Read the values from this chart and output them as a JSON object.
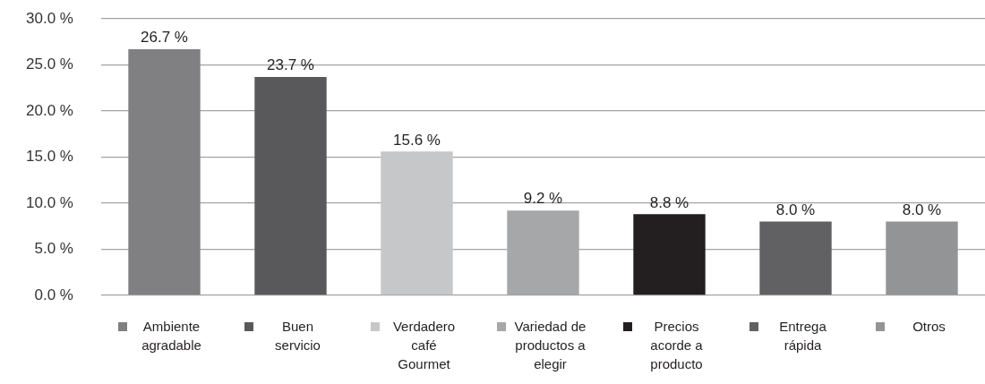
{
  "chart_data": {
    "type": "bar",
    "categories": [
      null,
      null,
      null,
      null,
      null,
      null,
      null
    ],
    "series": [
      {
        "name": "Ambiente agradable",
        "color": "#808083",
        "values": [
          26.7,
          null,
          null,
          null,
          null,
          null,
          null
        ],
        "value_labels": [
          "26.7 %",
          null,
          null,
          null,
          null,
          null,
          null
        ]
      },
      {
        "name": "Buen servicio",
        "color": "#59595b",
        "values": [
          null,
          23.7,
          null,
          null,
          null,
          null,
          null
        ],
        "value_labels": [
          null,
          "23.7 %",
          null,
          null,
          null,
          null,
          null
        ]
      },
      {
        "name": "Verdadero café Gourmet",
        "color": "#c6c7c9",
        "values": [
          null,
          null,
          15.6,
          null,
          null,
          null,
          null
        ],
        "value_labels": [
          null,
          null,
          "15.6 %",
          null,
          null,
          null,
          null
        ]
      },
      {
        "name": "Variedad de productos a elegir",
        "color": "#a6a7a9",
        "values": [
          null,
          null,
          null,
          9.2,
          null,
          null,
          null
        ],
        "value_labels": [
          null,
          null,
          null,
          "9.2 %",
          null,
          null,
          null
        ]
      },
      {
        "name": "Precios acorde a producto",
        "color": "#231f20",
        "values": [
          null,
          null,
          null,
          null,
          8.8,
          null,
          null
        ],
        "value_labels": [
          null,
          null,
          null,
          null,
          "8.8 %",
          null,
          null
        ]
      },
      {
        "name": "Entrega rápida",
        "color": "#616163",
        "values": [
          null,
          null,
          null,
          null,
          null,
          8.0,
          null
        ],
        "value_labels": [
          null,
          null,
          null,
          null,
          null,
          "8.0 %",
          null
        ]
      },
      {
        "name": "Otros",
        "color": "#939496",
        "values": [
          null,
          null,
          null,
          null,
          null,
          null,
          8.0
        ],
        "value_labels": [
          null,
          null,
          null,
          null,
          null,
          null,
          "8.0 %"
        ]
      }
    ],
    "ylim": [
      0,
      30
    ],
    "yticks": [
      {
        "value": 0,
        "label": "0.0 %"
      },
      {
        "value": 5,
        "label": "5.0 %"
      },
      {
        "value": 10,
        "label": "10.0 %"
      },
      {
        "value": 15,
        "label": "15.0 %"
      },
      {
        "value": 20,
        "label": "20.0 %"
      },
      {
        "value": 25,
        "label": "25.0 %"
      },
      {
        "value": 30,
        "label": "30.0 %"
      }
    ],
    "grid": "y",
    "legend": "bottom",
    "tick_labels": "y"
  }
}
